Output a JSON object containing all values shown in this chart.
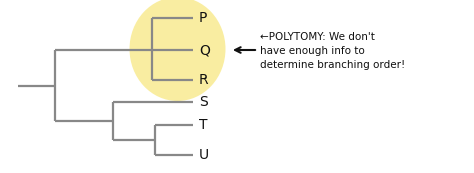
{
  "bg_color": "#ffffff",
  "tree_color": "#888888",
  "highlight_color": "#f7e882",
  "highlight_alpha": 0.75,
  "line_width": 1.6,
  "taxa_upper": [
    "P",
    "Q",
    "R"
  ],
  "taxa_lower": [
    "S",
    "T",
    "U"
  ],
  "annot_line1": "←POLYTOMY: We don't",
  "annot_line2": "have enough info to",
  "annot_line3": "determine branching order!",
  "font_size_taxa": 10,
  "font_size_annot": 7.5
}
